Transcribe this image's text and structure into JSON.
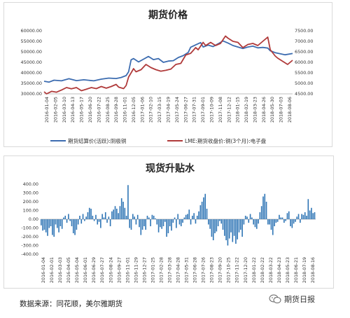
{
  "chart_data": [
    {
      "type": "line",
      "title": "期货价格",
      "x_tick_labels": [
        "2016-01-04",
        "2016-02-05",
        "2016-03-10",
        "2016-04-13",
        "2016-05-17",
        "2016-06-20",
        "2016-07-22",
        "2016-08-25",
        "2016-09-28",
        "2016-11-01",
        "2016-12-05",
        "2017-01-06",
        "2017-02-10",
        "2017-03-15",
        "2017-04-19",
        "2017-05-24",
        "2017-06-27",
        "2017-07-31",
        "2017-09-01",
        "2017-10-09",
        "2017-11-08",
        "2017-12-12",
        "2018-01-15",
        "2018-02-19",
        "2018-03-23",
        "2018-04-26",
        "2018-05-30",
        "2018-07-03",
        "2018-08-06"
      ],
      "ylim_left": [
        30000,
        60000
      ],
      "yticks_left": [
        "30000.00",
        "35000.00",
        "40000.00",
        "45000.00",
        "50000.00",
        "55000.00",
        "60000.00"
      ],
      "ylim_right": [
        4500,
        7500
      ],
      "yticks_right": [
        "4500.00",
        "5000.00",
        "5500.00",
        "6000.00",
        "6500.00",
        "7000.00",
        "7500.00"
      ],
      "series": [
        {
          "name": "期货结算价(活跃):阴极铜",
          "axis": "left",
          "color": "#3c6cb0",
          "points": [
            [
              0,
              36000
            ],
            [
              0.02,
              35600
            ],
            [
              0.04,
              36500
            ],
            [
              0.07,
              36200
            ],
            [
              0.1,
              37200
            ],
            [
              0.13,
              36300
            ],
            [
              0.16,
              36700
            ],
            [
              0.2,
              36200
            ],
            [
              0.23,
              37000
            ],
            [
              0.26,
              37500
            ],
            [
              0.29,
              37300
            ],
            [
              0.31,
              37800
            ],
            [
              0.33,
              38700
            ],
            [
              0.34,
              40500
            ],
            [
              0.35,
              46200
            ],
            [
              0.36,
              46800
            ],
            [
              0.38,
              45200
            ],
            [
              0.4,
              46500
            ],
            [
              0.42,
              47800
            ],
            [
              0.44,
              46300
            ],
            [
              0.46,
              46800
            ],
            [
              0.48,
              45000
            ],
            [
              0.5,
              45600
            ],
            [
              0.52,
              45800
            ],
            [
              0.54,
              47300
            ],
            [
              0.56,
              48200
            ],
            [
              0.58,
              49700
            ],
            [
              0.59,
              52200
            ],
            [
              0.61,
              53300
            ],
            [
              0.63,
              54400
            ],
            [
              0.64,
              52300
            ],
            [
              0.66,
              53200
            ],
            [
              0.68,
              52500
            ],
            [
              0.7,
              53800
            ],
            [
              0.72,
              55200
            ],
            [
              0.74,
              54200
            ],
            [
              0.76,
              53000
            ],
            [
              0.78,
              52300
            ],
            [
              0.8,
              51600
            ],
            [
              0.82,
              52300
            ],
            [
              0.84,
              52700
            ],
            [
              0.86,
              51900
            ],
            [
              0.88,
              52100
            ],
            [
              0.9,
              51800
            ],
            [
              0.91,
              50500
            ],
            [
              0.93,
              49600
            ],
            [
              0.95,
              49100
            ],
            [
              0.97,
              48600
            ],
            [
              1,
              49200
            ]
          ]
        },
        {
          "name": "LME:期货收盘价:铜(3个月):电子盘",
          "axis": "right",
          "color": "#b03a3a",
          "points": [
            [
              0,
              4600
            ],
            [
              0.01,
              4500
            ],
            [
              0.03,
              4620
            ],
            [
              0.05,
              4580
            ],
            [
              0.07,
              4680
            ],
            [
              0.09,
              4800
            ],
            [
              0.11,
              4740
            ],
            [
              0.13,
              4800
            ],
            [
              0.15,
              4650
            ],
            [
              0.17,
              4720
            ],
            [
              0.19,
              4800
            ],
            [
              0.21,
              4750
            ],
            [
              0.23,
              4850
            ],
            [
              0.25,
              4770
            ],
            [
              0.27,
              4850
            ],
            [
              0.29,
              4950
            ],
            [
              0.3,
              4820
            ],
            [
              0.32,
              4750
            ],
            [
              0.33,
              4900
            ],
            [
              0.34,
              5300
            ],
            [
              0.35,
              5500
            ],
            [
              0.36,
              5700
            ],
            [
              0.37,
              5550
            ],
            [
              0.39,
              5650
            ],
            [
              0.41,
              5900
            ],
            [
              0.43,
              5750
            ],
            [
              0.45,
              5650
            ],
            [
              0.47,
              5580
            ],
            [
              0.49,
              5620
            ],
            [
              0.51,
              5680
            ],
            [
              0.53,
              5900
            ],
            [
              0.55,
              5950
            ],
            [
              0.57,
              6350
            ],
            [
              0.59,
              6430
            ],
            [
              0.61,
              6700
            ],
            [
              0.62,
              6600
            ],
            [
              0.64,
              6950
            ],
            [
              0.65,
              6800
            ],
            [
              0.67,
              6950
            ],
            [
              0.69,
              6800
            ],
            [
              0.71,
              6900
            ],
            [
              0.73,
              7250
            ],
            [
              0.74,
              7150
            ],
            [
              0.76,
              7000
            ],
            [
              0.78,
              6950
            ],
            [
              0.8,
              6700
            ],
            [
              0.82,
              6850
            ],
            [
              0.84,
              6900
            ],
            [
              0.86,
              6800
            ],
            [
              0.88,
              7000
            ],
            [
              0.9,
              7200
            ],
            [
              0.91,
              6600
            ],
            [
              0.93,
              6300
            ],
            [
              0.94,
              6200
            ],
            [
              0.96,
              6050
            ],
            [
              0.98,
              5900
            ],
            [
              1,
              6100
            ]
          ]
        }
      ]
    },
    {
      "type": "bar",
      "title": "现货升贴水",
      "x_tick_labels": [
        "2016-01-04",
        "2016-02-01",
        "2016-03-03",
        "2016-04-05",
        "2016-05-04",
        "2016-06-01",
        "2016-06-29",
        "2016-07-27",
        "2016-08-24",
        "2016-09-27",
        "2016-11-01",
        "2016-11-29",
        "2016-12-27",
        "2017-01-25",
        "2017-02-28",
        "2017-03-28",
        "2017-04-28",
        "2017-05-31",
        "2017-06-28",
        "2017-07-26",
        "2017-08-23",
        "2017-09-20",
        "2017-10-25",
        "2017-11-22",
        "2017-12-20",
        "2018-01-22",
        "2018-02-22",
        "2018-03-22",
        "2018-04-23",
        "2018-05-23",
        "2018-06-21",
        "2018-07-19",
        "2018-08-16"
      ],
      "ylim": [
        -400,
        400
      ],
      "yticks": [
        "400.00",
        "300.00",
        "200.00",
        "100.00",
        "0.00",
        "-100.00",
        "-200.00",
        "-300.00",
        "-400.00"
      ],
      "color": "#2f75b5",
      "values": [
        -70,
        -130,
        -120,
        -150,
        -190,
        -100,
        -80,
        -180,
        -200,
        -60,
        -100,
        -150,
        -80,
        -110,
        20,
        40,
        -40,
        60,
        -20,
        -80,
        -160,
        -180,
        -120,
        -60,
        40,
        -50,
        60,
        -20,
        30,
        80,
        130,
        120,
        40,
        -20,
        50,
        -60,
        -30,
        -100,
        60,
        20,
        80,
        -40,
        30,
        -80,
        90,
        110,
        150,
        120,
        70,
        150,
        240,
        200,
        130,
        40,
        390,
        -100,
        -120,
        60,
        30,
        -60,
        50,
        -90,
        -180,
        -120,
        -80,
        -120,
        40,
        20,
        -80,
        50,
        40,
        10,
        -60,
        -150,
        -90,
        -110,
        -80,
        -30,
        -200,
        -160,
        -80,
        -130,
        -40,
        20,
        -100,
        60,
        -60,
        -80,
        -40,
        20,
        50,
        60,
        110,
        -60,
        40,
        70,
        -50,
        40,
        90,
        160,
        200,
        250,
        290,
        120,
        -60,
        -110,
        -200,
        -240,
        -160,
        -140,
        -80,
        -20,
        -50,
        -120,
        -190,
        -240,
        -300,
        -220,
        -150,
        -260,
        -190,
        -280,
        -230,
        -150,
        -120,
        -200,
        -60,
        40,
        30,
        -40,
        60,
        20,
        -60,
        -90,
        -110,
        -50,
        80,
        150,
        260,
        290,
        200,
        -60,
        -60,
        -120,
        -180,
        -80,
        -40,
        -30,
        50,
        20,
        20,
        -40,
        -20,
        70,
        90,
        -80,
        -100,
        -50,
        -30,
        30,
        60,
        -40,
        60,
        50,
        80,
        40,
        230,
        100,
        130,
        70,
        80
      ]
    }
  ],
  "legend": [
    {
      "label": "期货结算价(活跃):阴极铜",
      "color": "#3c6cb0"
    },
    {
      "label": "LME:期货收盘价:铜(3个月):电子盘",
      "color": "#b03a3a"
    }
  ],
  "footer": {
    "source": "数据来源：同花顺，美尔雅期货",
    "watermark": "期货日报"
  }
}
